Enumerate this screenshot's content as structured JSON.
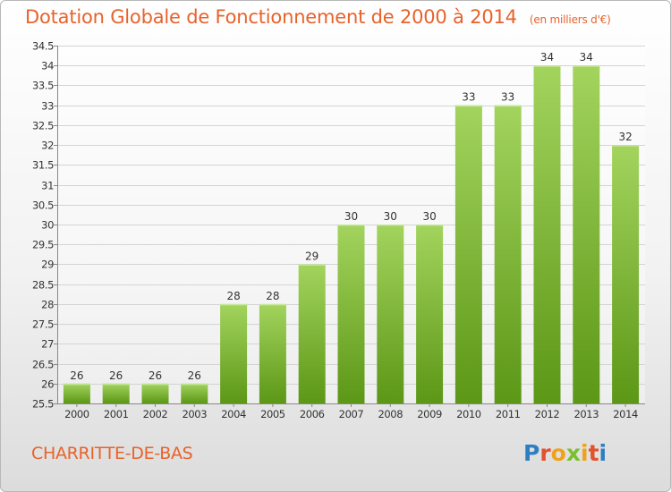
{
  "header": {
    "title": "Dotation Globale de Fonctionnement de 2000 à 2014",
    "unit": "(en milliers d'€)"
  },
  "footer": {
    "commune": "CHARRITTE-DE-BAS",
    "logo_text": "Proxiti"
  },
  "colors": {
    "accent": "#e8622b",
    "bar_light": "#9fd15a",
    "bar_dark": "#5f9a1a"
  },
  "chart_data": {
    "type": "bar",
    "title": "Dotation Globale de Fonctionnement de 2000 à 2014",
    "subtitle": "(en milliers d'€)",
    "xlabel": "",
    "ylabel": "",
    "categories": [
      "2000",
      "2001",
      "2002",
      "2003",
      "2004",
      "2005",
      "2006",
      "2007",
      "2008",
      "2009",
      "2010",
      "2011",
      "2012",
      "2013",
      "2014"
    ],
    "values": [
      26,
      26,
      26,
      26,
      28,
      28,
      29,
      30,
      30,
      30,
      33,
      33,
      34,
      34,
      32
    ],
    "ylim": [
      25.5,
      34.5
    ],
    "yticks": [
      "25.5",
      "26",
      "26.5",
      "27",
      "27.5",
      "28",
      "28.5",
      "29",
      "29.5",
      "30",
      "30.5",
      "31",
      "31.5",
      "32",
      "32.5",
      "33",
      "33.5",
      "34",
      "34.5"
    ],
    "grid": true,
    "legend": "none"
  }
}
